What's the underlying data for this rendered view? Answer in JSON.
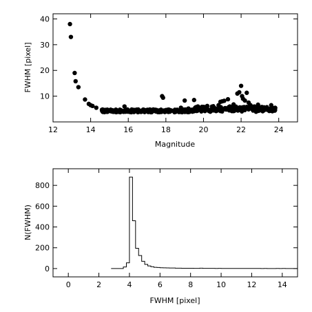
{
  "chart_data": [
    {
      "type": "scatter",
      "xlabel": "Magnitude",
      "ylabel": "FWHM [pixel]",
      "xlim": [
        12,
        25
      ],
      "ylim": [
        0,
        42
      ],
      "xticks": [
        12,
        14,
        16,
        18,
        20,
        22,
        24
      ],
      "yticks": [
        10,
        20,
        30,
        40
      ],
      "grid": false,
      "points": [
        [
          12.9,
          38
        ],
        [
          12.95,
          33
        ],
        [
          13.15,
          19
        ],
        [
          13.2,
          15.8
        ],
        [
          13.35,
          13.5
        ],
        [
          13.7,
          8.7
        ],
        [
          13.9,
          7
        ],
        [
          14.0,
          6.5
        ],
        [
          14.1,
          6.2
        ],
        [
          14.3,
          5.5
        ],
        [
          14.6,
          4.7
        ],
        [
          14.8,
          4.5
        ],
        [
          15.0,
          4.4
        ],
        [
          15.3,
          4.3
        ],
        [
          15.6,
          4.3
        ],
        [
          15.8,
          6.0
        ],
        [
          16.0,
          4.4
        ],
        [
          16.3,
          4.2
        ],
        [
          16.6,
          4.3
        ],
        [
          16.8,
          4.8
        ],
        [
          17.0,
          4.2
        ],
        [
          17.3,
          4.3
        ],
        [
          17.6,
          4.4
        ],
        [
          17.8,
          10.0
        ],
        [
          17.85,
          9.4
        ],
        [
          18.0,
          4.3
        ],
        [
          18.3,
          4.4
        ],
        [
          18.6,
          4.6
        ],
        [
          18.8,
          5.5
        ],
        [
          19.0,
          8.3
        ],
        [
          19.2,
          5.2
        ],
        [
          19.5,
          8.5
        ],
        [
          19.7,
          6.0
        ],
        [
          20.0,
          5.5
        ],
        [
          20.2,
          6.2
        ],
        [
          20.5,
          5.8
        ],
        [
          20.8,
          6.5
        ],
        [
          20.9,
          7.8
        ],
        [
          21.0,
          8.0
        ],
        [
          21.1,
          8.2
        ],
        [
          21.3,
          8.8
        ],
        [
          21.4,
          6.0
        ],
        [
          21.6,
          6.8
        ],
        [
          21.8,
          11.0
        ],
        [
          21.9,
          11.5
        ],
        [
          22.0,
          14.0
        ],
        [
          22.05,
          10.0
        ],
        [
          22.1,
          9.0
        ],
        [
          22.2,
          8.3
        ],
        [
          22.3,
          11.3
        ],
        [
          22.4,
          7.5
        ],
        [
          22.5,
          6.5
        ],
        [
          22.7,
          6.0
        ],
        [
          22.9,
          6.7
        ],
        [
          23.1,
          5.8
        ],
        [
          23.3,
          5.2
        ],
        [
          23.5,
          5.0
        ],
        [
          23.6,
          6.5
        ],
        [
          23.8,
          4.5
        ]
      ],
      "band": {
        "x": [
          14.6,
          23.9
        ],
        "y": [
          3.7,
          4.9
        ]
      }
    },
    {
      "type": "histogram",
      "xlabel": "FWHM [pixel]",
      "ylabel": "N(FWHM)",
      "xlim": [
        -1,
        15
      ],
      "ylim": [
        -80,
        960
      ],
      "xticks": [
        0,
        2,
        4,
        6,
        8,
        10,
        12,
        14
      ],
      "yticks": [
        0,
        200,
        400,
        600,
        800
      ],
      "grid": false,
      "bin_width": 0.2,
      "bins": [
        [
          2.8,
          0
        ],
        [
          3.0,
          0
        ],
        [
          3.2,
          0
        ],
        [
          3.4,
          0
        ],
        [
          3.6,
          15
        ],
        [
          3.8,
          55
        ],
        [
          4.0,
          880
        ],
        [
          4.2,
          460
        ],
        [
          4.4,
          195
        ],
        [
          4.6,
          125
        ],
        [
          4.8,
          70
        ],
        [
          5.0,
          40
        ],
        [
          5.2,
          25
        ],
        [
          5.4,
          18
        ],
        [
          5.6,
          12
        ],
        [
          5.8,
          10
        ],
        [
          6.0,
          8
        ],
        [
          6.2,
          7
        ],
        [
          6.4,
          6
        ],
        [
          6.6,
          5
        ],
        [
          6.8,
          5
        ],
        [
          7.0,
          4
        ],
        [
          7.2,
          4
        ],
        [
          7.4,
          3
        ],
        [
          7.6,
          3
        ],
        [
          7.8,
          3
        ],
        [
          8.0,
          3
        ],
        [
          8.2,
          2
        ],
        [
          8.4,
          2
        ],
        [
          8.6,
          4
        ],
        [
          8.8,
          2
        ],
        [
          9.0,
          2
        ],
        [
          9.2,
          2
        ],
        [
          9.4,
          2
        ],
        [
          9.6,
          1
        ],
        [
          9.8,
          2
        ],
        [
          10.0,
          1
        ],
        [
          10.2,
          1
        ],
        [
          10.4,
          1
        ],
        [
          10.6,
          1
        ],
        [
          10.8,
          1
        ],
        [
          11.0,
          1
        ],
        [
          11.2,
          1
        ],
        [
          11.4,
          1
        ],
        [
          11.6,
          1
        ],
        [
          11.8,
          1
        ],
        [
          12.0,
          1
        ],
        [
          12.2,
          1
        ],
        [
          12.4,
          1
        ],
        [
          12.6,
          0
        ],
        [
          12.8,
          1
        ],
        [
          13.0,
          0
        ],
        [
          13.2,
          0
        ],
        [
          13.4,
          0
        ],
        [
          13.6,
          1
        ],
        [
          13.8,
          0
        ],
        [
          14.0,
          1
        ],
        [
          14.2,
          0
        ],
        [
          14.4,
          0
        ],
        [
          14.6,
          0
        ],
        [
          14.8,
          0
        ]
      ]
    }
  ]
}
